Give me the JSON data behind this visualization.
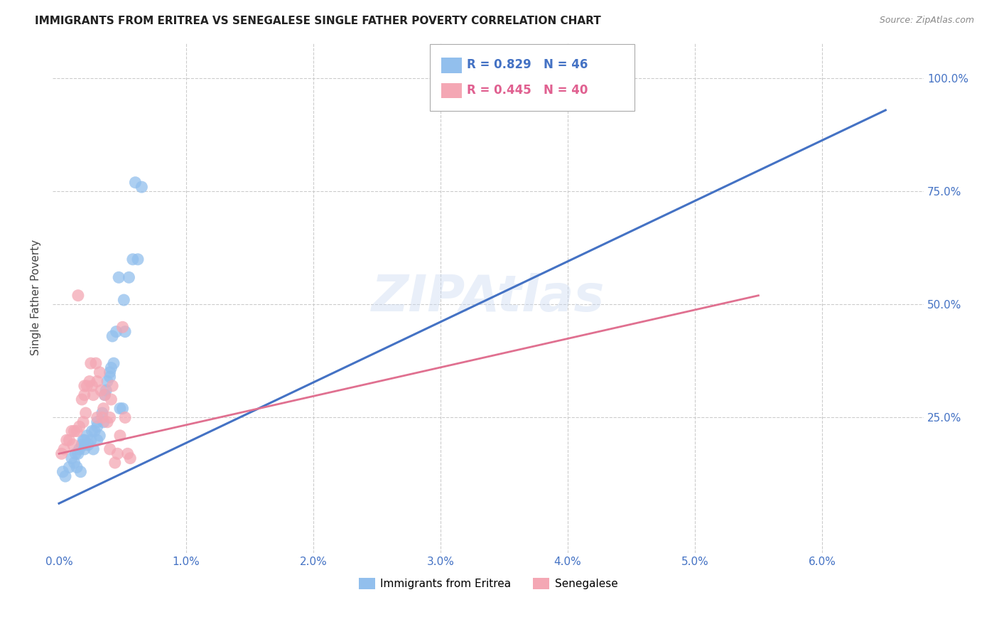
{
  "title": "IMMIGRANTS FROM ERITREA VS SENEGALESE SINGLE FATHER POVERTY CORRELATION CHART",
  "source": "Source: ZipAtlas.com",
  "ylabel": "Single Father Poverty",
  "yticks_labels": [
    "25.0%",
    "50.0%",
    "75.0%",
    "100.0%"
  ],
  "ytick_vals": [
    25.0,
    50.0,
    75.0,
    100.0
  ],
  "xtick_vals": [
    0.0,
    1.0,
    2.0,
    3.0,
    4.0,
    5.0,
    6.0
  ],
  "xtick_labels": [
    "0.0%",
    "1.0%",
    "2.0%",
    "3.0%",
    "4.0%",
    "5.0%",
    "6.0%"
  ],
  "legend_eritrea": "R = 0.829   N = 46",
  "legend_senegalese": "R = 0.445   N = 40",
  "legend_label_eritrea": "Immigrants from Eritrea",
  "legend_label_senegalese": "Senegalese",
  "color_eritrea": "#92BFED",
  "color_senegalese": "#F4A7B4",
  "line_color_eritrea": "#4472C4",
  "line_color_senegalese": "#E07090",
  "watermark": "ZIPAtlas",
  "eritrea_x": [
    0.03,
    0.05,
    0.08,
    0.1,
    0.12,
    0.13,
    0.15,
    0.16,
    0.17,
    0.18,
    0.2,
    0.2,
    0.21,
    0.22,
    0.25,
    0.26,
    0.27,
    0.3,
    0.3,
    0.3,
    0.32,
    0.34,
    0.35,
    0.36,
    0.38,
    0.4,
    0.4,
    0.41,
    0.42,
    0.45,
    0.48,
    0.5,
    0.51,
    0.55,
    0.6,
    0.62,
    0.19,
    0.28,
    0.14,
    0.23,
    0.37,
    0.43,
    0.52,
    0.58,
    0.47,
    0.65
  ],
  "eritrea_y": [
    13.0,
    12.0,
    14.0,
    16.0,
    15.0,
    17.0,
    17.0,
    18.0,
    13.0,
    19.0,
    18.0,
    20.0,
    19.0,
    21.0,
    20.0,
    22.0,
    18.0,
    20.0,
    23.0,
    24.0,
    21.0,
    26.0,
    24.0,
    30.0,
    33.0,
    35.0,
    34.0,
    36.0,
    43.0,
    44.0,
    27.0,
    27.0,
    51.0,
    56.0,
    77.0,
    60.0,
    20.0,
    22.0,
    14.0,
    19.0,
    31.0,
    37.0,
    44.0,
    60.0,
    56.0,
    76.0
  ],
  "eritrea_line_x": [
    0.0,
    6.5
  ],
  "eritrea_line_y": [
    6.0,
    93.0
  ],
  "senegalese_x": [
    0.02,
    0.04,
    0.06,
    0.08,
    0.1,
    0.11,
    0.12,
    0.14,
    0.16,
    0.18,
    0.2,
    0.2,
    0.22,
    0.24,
    0.25,
    0.27,
    0.3,
    0.3,
    0.32,
    0.34,
    0.36,
    0.38,
    0.4,
    0.4,
    0.42,
    0.44,
    0.46,
    0.5,
    0.52,
    0.54,
    0.56,
    0.15,
    0.29,
    0.33,
    0.48,
    0.19,
    0.21,
    0.26,
    0.35,
    0.41
  ],
  "senegalese_y": [
    17.0,
    18.0,
    20.0,
    20.0,
    22.0,
    19.0,
    22.0,
    22.0,
    23.0,
    29.0,
    30.0,
    32.0,
    32.0,
    33.0,
    37.0,
    30.0,
    33.0,
    25.0,
    35.0,
    25.0,
    30.0,
    24.0,
    25.0,
    18.0,
    32.0,
    15.0,
    17.0,
    45.0,
    25.0,
    17.0,
    16.0,
    52.0,
    37.0,
    31.0,
    21.0,
    24.0,
    26.0,
    32.0,
    27.0,
    29.0
  ],
  "senegalese_line_x": [
    0.0,
    5.5
  ],
  "senegalese_line_y": [
    17.0,
    52.0
  ],
  "xlim": [
    -0.05,
    6.8
  ],
  "ylim": [
    -5.0,
    108.0
  ]
}
